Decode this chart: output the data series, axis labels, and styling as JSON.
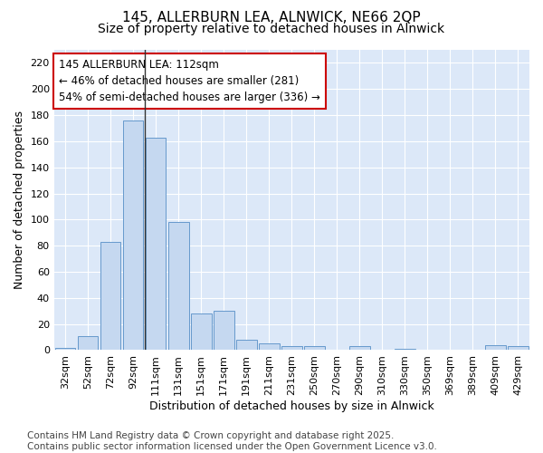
{
  "title_line1": "145, ALLERBURN LEA, ALNWICK, NE66 2QP",
  "title_line2": "Size of property relative to detached houses in Alnwick",
  "xlabel": "Distribution of detached houses by size in Alnwick",
  "ylabel": "Number of detached properties",
  "categories": [
    "32sqm",
    "52sqm",
    "72sqm",
    "92sqm",
    "111sqm",
    "131sqm",
    "151sqm",
    "171sqm",
    "191sqm",
    "211sqm",
    "231sqm",
    "250sqm",
    "270sqm",
    "290sqm",
    "310sqm",
    "330sqm",
    "350sqm",
    "369sqm",
    "389sqm",
    "409sqm",
    "429sqm"
  ],
  "values": [
    2,
    11,
    83,
    176,
    163,
    98,
    28,
    30,
    8,
    5,
    3,
    3,
    0,
    3,
    0,
    1,
    0,
    0,
    0,
    4,
    3
  ],
  "bar_color": "#c5d8f0",
  "bar_edge_color": "#6699cc",
  "vline_index": 4,
  "vline_color": "#333333",
  "annotation_text": "145 ALLERBURN LEA: 112sqm\n← 46% of detached houses are smaller (281)\n54% of semi-detached houses are larger (336) →",
  "annotation_box_color": "#ffffff",
  "annotation_box_edge": "#cc0000",
  "ylim": [
    0,
    230
  ],
  "yticks": [
    0,
    20,
    40,
    60,
    80,
    100,
    120,
    140,
    160,
    180,
    200,
    220
  ],
  "fig_background_color": "#ffffff",
  "plot_bg_color": "#dce8f8",
  "footer_text": "Contains HM Land Registry data © Crown copyright and database right 2025.\nContains public sector information licensed under the Open Government Licence v3.0.",
  "title_fontsize": 11,
  "subtitle_fontsize": 10,
  "axis_label_fontsize": 9,
  "tick_fontsize": 8,
  "annotation_fontsize": 8.5,
  "footer_fontsize": 7.5
}
